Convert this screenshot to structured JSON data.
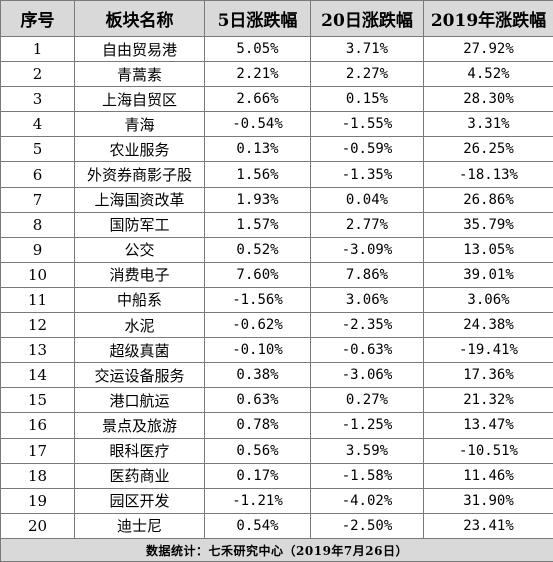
{
  "header": {
    "index": "序号",
    "sector": "板块名称",
    "change_5d": "5日涨跌幅",
    "change_20d": "20日涨跌幅",
    "change_2019": "2019年涨跌幅"
  },
  "rows": [
    {
      "index": "1",
      "sector": "自由贸易港",
      "change_5d": "5.05%",
      "change_20d": "3.71%",
      "change_2019": "27.92%"
    },
    {
      "index": "2",
      "sector": "青蒿素",
      "change_5d": "2.21%",
      "change_20d": "2.27%",
      "change_2019": "4.52%"
    },
    {
      "index": "3",
      "sector": "上海自贸区",
      "change_5d": "2.66%",
      "change_20d": "0.15%",
      "change_2019": "28.30%"
    },
    {
      "index": "4",
      "sector": "青海",
      "change_5d": "-0.54%",
      "change_20d": "-1.55%",
      "change_2019": "3.31%"
    },
    {
      "index": "5",
      "sector": "农业服务",
      "change_5d": "0.13%",
      "change_20d": "-0.59%",
      "change_2019": "26.25%"
    },
    {
      "index": "6",
      "sector": "外资券商影子股",
      "change_5d": "1.56%",
      "change_20d": "-1.35%",
      "change_2019": "-18.13%"
    },
    {
      "index": "7",
      "sector": "上海国资改革",
      "change_5d": "1.93%",
      "change_20d": "0.04%",
      "change_2019": "26.86%"
    },
    {
      "index": "8",
      "sector": "国防军工",
      "change_5d": "1.57%",
      "change_20d": "2.77%",
      "change_2019": "35.79%"
    },
    {
      "index": "9",
      "sector": "公交",
      "change_5d": "0.52%",
      "change_20d": "-3.09%",
      "change_2019": "13.05%"
    },
    {
      "index": "10",
      "sector": "消费电子",
      "change_5d": "7.60%",
      "change_20d": "7.86%",
      "change_2019": "39.01%"
    },
    {
      "index": "11",
      "sector": "中船系",
      "change_5d": "-1.56%",
      "change_20d": "3.06%",
      "change_2019": "3.06%"
    },
    {
      "index": "12",
      "sector": "水泥",
      "change_5d": "-0.62%",
      "change_20d": "-2.35%",
      "change_2019": "24.38%"
    },
    {
      "index": "13",
      "sector": "超级真菌",
      "change_5d": "-0.10%",
      "change_20d": "-0.63%",
      "change_2019": "-19.41%"
    },
    {
      "index": "14",
      "sector": "交运设备服务",
      "change_5d": "0.38%",
      "change_20d": "-3.06%",
      "change_2019": "17.36%"
    },
    {
      "index": "15",
      "sector": "港口航运",
      "change_5d": "0.63%",
      "change_20d": "0.27%",
      "change_2019": "21.32%"
    },
    {
      "index": "16",
      "sector": "景点及旅游",
      "change_5d": "0.78%",
      "change_20d": "-1.25%",
      "change_2019": "13.47%"
    },
    {
      "index": "17",
      "sector": "眼科医疗",
      "change_5d": "0.56%",
      "change_20d": "3.59%",
      "change_2019": "-10.51%"
    },
    {
      "index": "18",
      "sector": "医药商业",
      "change_5d": "0.17%",
      "change_20d": "-1.58%",
      "change_2019": "11.46%"
    },
    {
      "index": "19",
      "sector": "园区开发",
      "change_5d": "-1.21%",
      "change_20d": "-4.02%",
      "change_2019": "31.90%"
    },
    {
      "index": "20",
      "sector": "迪士尼",
      "change_5d": "0.54%",
      "change_20d": "-2.50%",
      "change_2019": "23.41%"
    }
  ],
  "footer": {
    "source": "数据统计：七禾研究中心（2019年7月26日）"
  },
  "colors": {
    "header_bg": "#d9d9d9",
    "footer_bg": "#d9d9d9",
    "border": "#7a7a7a"
  }
}
